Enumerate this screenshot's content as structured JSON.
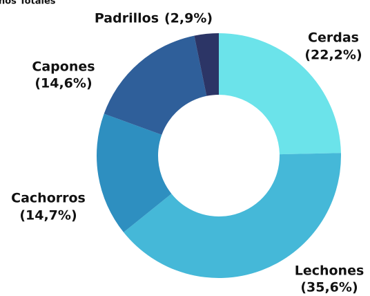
{
  "chart_data": {
    "type": "donut",
    "title": "nos Totales",
    "categories": [
      "Cerdas",
      "Lechones",
      "Cachorros",
      "Capones",
      "Padrillos"
    ],
    "values": [
      22.2,
      35.6,
      14.7,
      14.6,
      2.9
    ],
    "value_labels": [
      "(22,2%)",
      "(35,6%)",
      "(14,7%)",
      "(14,6%)",
      "(2,9%)"
    ],
    "colors": [
      "#6be3ea",
      "#45b8d8",
      "#2e8fc0",
      "#2f5f9a",
      "#2c3566"
    ]
  }
}
